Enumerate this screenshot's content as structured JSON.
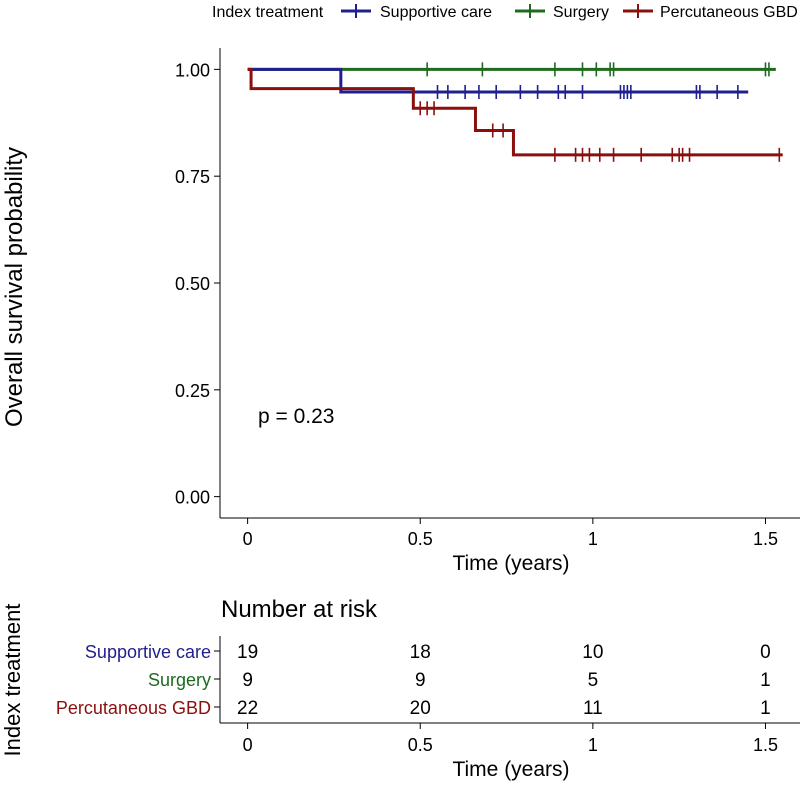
{
  "chart_data": {
    "type": "line",
    "subtype": "kaplan-meier",
    "legend": {
      "title": "Index treatment",
      "placement": "top",
      "entries": [
        {
          "name": "Supportive care",
          "color": "#1f1f8f"
        },
        {
          "name": "Surgery",
          "color": "#1e6b1e"
        },
        {
          "name": "Percutaneous GBD",
          "color": "#8b0f0f"
        }
      ]
    },
    "ylabel": "Overall survival probability",
    "xlabel": "Time (years)",
    "xlim": [
      -0.08,
      1.6
    ],
    "ylim": [
      -0.05,
      1.05
    ],
    "x_ticks": [
      "0",
      "0.5",
      "1",
      "1.5"
    ],
    "y_ticks": [
      "0.00",
      "0.25",
      "0.50",
      "0.75",
      "1.00"
    ],
    "annotation": "p = 0.23",
    "series": [
      {
        "name": "Supportive care",
        "color": "#1f1f8f",
        "steps": [
          [
            0,
            1.0
          ],
          [
            0.27,
            0.947
          ],
          [
            1.45,
            0.947
          ]
        ],
        "censor_times": [
          0.55,
          0.58,
          0.63,
          0.67,
          0.72,
          0.79,
          0.84,
          0.9,
          0.92,
          0.97,
          1.08,
          1.09,
          1.1,
          1.11,
          1.3,
          1.31,
          1.36,
          1.42
        ]
      },
      {
        "name": "Surgery",
        "color": "#1e6b1e",
        "steps": [
          [
            0,
            1.0
          ],
          [
            1.53,
            1.0
          ]
        ],
        "censor_times": [
          0.52,
          0.68,
          0.89,
          0.97,
          1.01,
          1.05,
          1.06,
          1.5,
          1.51
        ]
      },
      {
        "name": "Percutaneous GBD",
        "color": "#8b0f0f",
        "steps": [
          [
            0,
            1.0
          ],
          [
            0.01,
            0.955
          ],
          [
            0.48,
            0.909
          ],
          [
            0.66,
            0.857
          ],
          [
            0.77,
            0.8
          ],
          [
            1.55,
            0.8
          ]
        ],
        "censor_times": [
          0.5,
          0.52,
          0.54,
          0.71,
          0.74,
          0.89,
          0.95,
          0.97,
          0.99,
          1.02,
          1.06,
          1.14,
          1.23,
          1.25,
          1.26,
          1.28,
          1.54
        ]
      }
    ]
  },
  "risk_table": {
    "title": "Number at risk",
    "ylabel": "Index treatment",
    "xlabel": "Time (years)",
    "times": [
      "0",
      "0.5",
      "1",
      "1.5"
    ],
    "rows": [
      {
        "name": "Supportive care",
        "color": "#1f1f8f",
        "counts": [
          "19",
          "18",
          "10",
          "0"
        ]
      },
      {
        "name": "Surgery",
        "color": "#1e6b1e",
        "counts": [
          "9",
          "9",
          "5",
          "1"
        ]
      },
      {
        "name": "Percutaneous GBD",
        "color": "#8b0f0f",
        "counts": [
          "22",
          "20",
          "11",
          "1"
        ]
      }
    ]
  }
}
